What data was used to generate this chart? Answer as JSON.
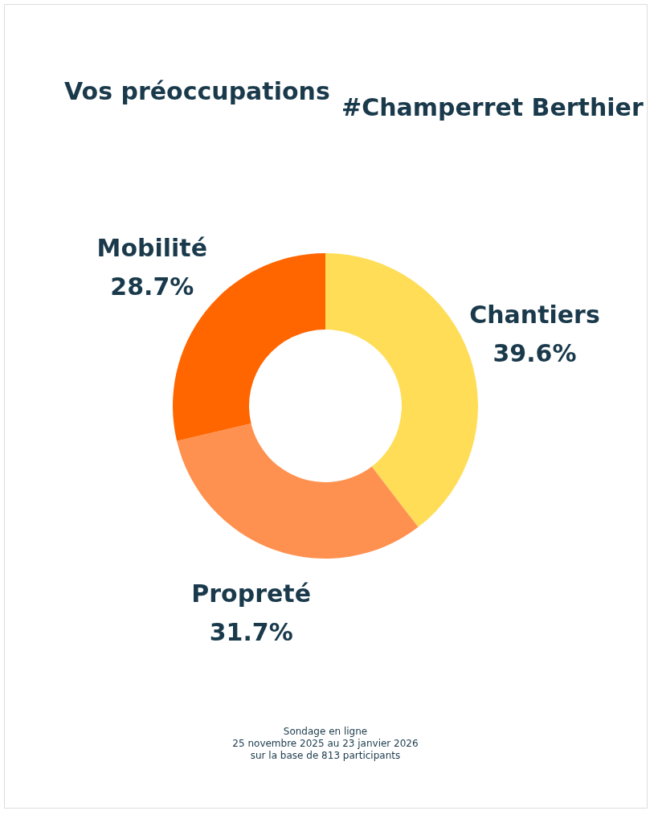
{
  "chart_data": {
    "type": "donut",
    "title": "Vos préoccupations",
    "subtitle": "#Champerret Berthier",
    "categories": [
      "Chantiers",
      "Propreté",
      "Mobilité"
    ],
    "values": [
      39.6,
      31.7,
      28.7
    ],
    "colors": [
      "#ffdd57",
      "#ff9150",
      "#ff6600"
    ],
    "value_labels": [
      "39.6%",
      "31.7%",
      "28.7%"
    ],
    "legend": false,
    "annotations": [
      "Sondage en ligne",
      "25 novembre 2025 au 23 janvier 2026",
      "sur la base de 813 participants"
    ]
  }
}
